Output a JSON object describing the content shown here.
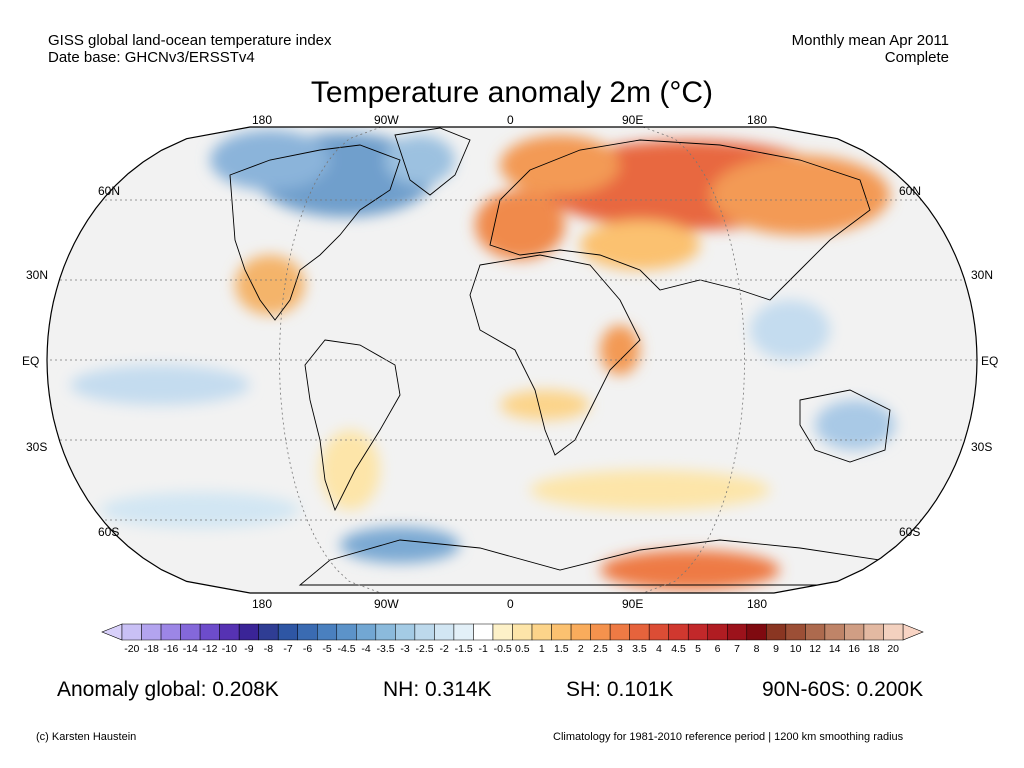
{
  "header": {
    "left_line1": "GISS global land-ocean temperature index",
    "left_line2": "Date base: GHCNv3/ERSSTv4",
    "right_line1": "Monthly mean Apr 2011",
    "right_line2": "Complete"
  },
  "title": "Temperature anomaly 2m (°C)",
  "map": {
    "projection": "Robinson",
    "lon_labels": [
      "180",
      "90W",
      "0",
      "90E",
      "180"
    ],
    "lat_labels": [
      "60N",
      "30N",
      "EQ",
      "30S",
      "60S"
    ],
    "ocean_color": "#f2f2f2"
  },
  "colorbar": {
    "ticks": [
      "-20",
      "-18",
      "-16",
      "-14",
      "-12",
      "-10",
      "-9",
      "-8",
      "-7",
      "-6",
      "-5",
      "-4.5",
      "-4",
      "-3.5",
      "-3",
      "-2.5",
      "-2",
      "-1.5",
      "-1",
      "-0.5",
      "0.5",
      "1",
      "1.5",
      "2",
      "2.5",
      "3",
      "3.5",
      "4",
      "4.5",
      "5",
      "6",
      "7",
      "8",
      "9",
      "10",
      "12",
      "14",
      "16",
      "18",
      "20"
    ],
    "colors": [
      "#c9c0f5",
      "#b3a4ef",
      "#9c86e6",
      "#8468da",
      "#6d4ccb",
      "#5632b3",
      "#3a2497",
      "#2f3d94",
      "#2e56a4",
      "#3a6bb2",
      "#4a80bf",
      "#5c93c9",
      "#72a7d3",
      "#8bbadc",
      "#a4cbe5",
      "#bdd9ec",
      "#d2e6f3",
      "#e3f0f8",
      "#ffffff",
      "#fdf1c8",
      "#fde5a9",
      "#fcd48a",
      "#fbc170",
      "#f9ac5c",
      "#f4924d",
      "#ee7a44",
      "#e6633c",
      "#dc4d35",
      "#d0382f",
      "#c2282a",
      "#b01c22",
      "#9c121b",
      "#7f0a10",
      "#8a3622",
      "#9c4f36",
      "#ad6a4e",
      "#bf8468",
      "#d09e84",
      "#e3b9a2",
      "#f3d1bf"
    ],
    "left_arrow_color": "#d8d0fa",
    "right_arrow_color": "#f8d4c4"
  },
  "stats": {
    "global": "Anomaly global: 0.208K",
    "nh": "NH: 0.314K",
    "sh": "SH: 0.101K",
    "band": "90N-60S: 0.200K"
  },
  "footer": {
    "left": "(c) Karsten Haustein",
    "right": "Climatology for 1981-2010 reference period | 1200 km smoothing radius"
  }
}
